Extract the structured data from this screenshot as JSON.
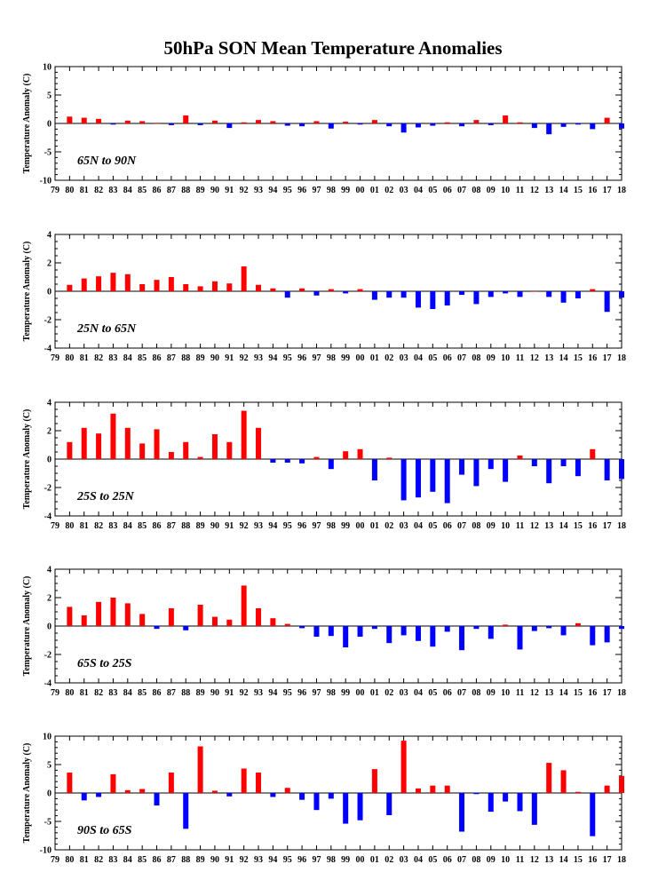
{
  "title": "50hPa SON Mean Temperature Anomalies",
  "colors": {
    "positive": "#ff0000",
    "negative": "#0000ff",
    "axis": "#000000"
  },
  "chart_data": [
    {
      "type": "bar",
      "label": "65N to 90N",
      "ylabel": "Temperature Anomaly (C)",
      "ylim": [
        -10,
        10
      ],
      "yticks": [
        "-10",
        "-5",
        "0",
        "5",
        "10"
      ],
      "x": [
        "80",
        "81",
        "82",
        "83",
        "84",
        "85",
        "86",
        "87",
        "88",
        "89",
        "90",
        "91",
        "92",
        "93",
        "94",
        "95",
        "96",
        "97",
        "98",
        "99",
        "00",
        "01",
        "02",
        "03",
        "04",
        "05",
        "06",
        "07",
        "08",
        "09",
        "10",
        "11",
        "12",
        "13",
        "14",
        "15",
        "16",
        "17",
        "18"
      ],
      "xticks": [
        "79",
        "80",
        "81",
        "82",
        "83",
        "84",
        "85",
        "86",
        "87",
        "88",
        "89",
        "90",
        "91",
        "92",
        "93",
        "94",
        "95",
        "96",
        "97",
        "98",
        "99",
        "00",
        "01",
        "02",
        "03",
        "04",
        "05",
        "06",
        "07",
        "08",
        "09",
        "10",
        "11",
        "12",
        "13",
        "14",
        "15",
        "16",
        "17",
        "18"
      ],
      "values": [
        1.2,
        1.0,
        0.8,
        -0.2,
        0.5,
        0.4,
        0.0,
        -0.3,
        1.4,
        -0.3,
        0.5,
        -0.8,
        0.2,
        0.6,
        0.4,
        -0.4,
        -0.5,
        0.4,
        -0.9,
        0.3,
        -0.2,
        0.6,
        -0.5,
        -1.6,
        -0.7,
        -0.4,
        0.2,
        -0.5,
        0.6,
        -0.3,
        1.4,
        0.2,
        -0.8,
        -1.9,
        -0.6,
        -0.2,
        -1.0,
        1.0,
        -0.9
      ]
    },
    {
      "type": "bar",
      "label": "25N to 65N",
      "ylabel": "Temperature Anomaly (C)",
      "ylim": [
        -4,
        4
      ],
      "yticks": [
        "-4",
        "-2",
        "0",
        "2",
        "4"
      ],
      "x": [
        "80",
        "81",
        "82",
        "83",
        "84",
        "85",
        "86",
        "87",
        "88",
        "89",
        "90",
        "91",
        "92",
        "93",
        "94",
        "95",
        "96",
        "97",
        "98",
        "99",
        "00",
        "01",
        "02",
        "03",
        "04",
        "05",
        "06",
        "07",
        "08",
        "09",
        "10",
        "11",
        "12",
        "13",
        "14",
        "15",
        "16",
        "17",
        "18"
      ],
      "xticks": [
        "79",
        "80",
        "81",
        "82",
        "83",
        "84",
        "85",
        "86",
        "87",
        "88",
        "89",
        "90",
        "91",
        "92",
        "93",
        "94",
        "95",
        "96",
        "97",
        "98",
        "99",
        "00",
        "01",
        "02",
        "03",
        "04",
        "05",
        "06",
        "07",
        "08",
        "09",
        "10",
        "11",
        "12",
        "13",
        "14",
        "15",
        "16",
        "17",
        "18"
      ],
      "values": [
        0.45,
        0.9,
        1.05,
        1.3,
        1.2,
        0.5,
        0.8,
        1.0,
        0.5,
        0.35,
        0.7,
        0.55,
        1.75,
        0.45,
        0.2,
        -0.45,
        0.2,
        -0.3,
        0.15,
        -0.15,
        0.15,
        -0.6,
        -0.45,
        -0.45,
        -1.15,
        -1.25,
        -1.0,
        -0.25,
        -0.9,
        -0.4,
        -0.15,
        -0.4,
        0.0,
        -0.4,
        -0.8,
        -0.5,
        0.15,
        -1.45,
        -0.45
      ]
    },
    {
      "type": "bar",
      "label": "25S to 25N",
      "ylabel": "Temperature Anomaly (C)",
      "ylim": [
        -4,
        4
      ],
      "yticks": [
        "-4",
        "-2",
        "0",
        "2",
        "4"
      ],
      "x": [
        "80",
        "81",
        "82",
        "83",
        "84",
        "85",
        "86",
        "87",
        "88",
        "89",
        "90",
        "91",
        "92",
        "93",
        "94",
        "95",
        "96",
        "97",
        "98",
        "99",
        "00",
        "01",
        "02",
        "03",
        "04",
        "05",
        "06",
        "07",
        "08",
        "09",
        "10",
        "11",
        "12",
        "13",
        "14",
        "15",
        "16",
        "17",
        "18"
      ],
      "xticks": [
        "79",
        "80",
        "81",
        "82",
        "83",
        "84",
        "85",
        "86",
        "87",
        "88",
        "89",
        "90",
        "91",
        "92",
        "93",
        "94",
        "95",
        "96",
        "97",
        "98",
        "99",
        "00",
        "01",
        "02",
        "03",
        "04",
        "05",
        "06",
        "07",
        "08",
        "09",
        "10",
        "11",
        "12",
        "13",
        "14",
        "15",
        "16",
        "17",
        "18"
      ],
      "values": [
        1.2,
        2.2,
        1.8,
        3.2,
        2.2,
        1.1,
        2.1,
        0.5,
        1.2,
        0.15,
        1.75,
        1.2,
        3.4,
        2.2,
        -0.25,
        -0.25,
        -0.3,
        0.15,
        -0.7,
        0.55,
        0.7,
        -1.5,
        0.1,
        -2.9,
        -2.7,
        -2.3,
        -3.1,
        -1.1,
        -1.9,
        -0.7,
        -1.6,
        0.25,
        -0.5,
        -1.7,
        -0.5,
        -1.2,
        0.7,
        -1.5,
        -1.4
      ]
    },
    {
      "type": "bar",
      "label": "65S to 25S",
      "ylabel": "Temperature Anomaly (C)",
      "ylim": [
        -4,
        4
      ],
      "yticks": [
        "-4",
        "-2",
        "0",
        "2",
        "4"
      ],
      "x": [
        "80",
        "81",
        "82",
        "83",
        "84",
        "85",
        "86",
        "87",
        "88",
        "89",
        "90",
        "91",
        "92",
        "93",
        "94",
        "95",
        "96",
        "97",
        "98",
        "99",
        "00",
        "01",
        "02",
        "03",
        "04",
        "05",
        "06",
        "07",
        "08",
        "09",
        "10",
        "11",
        "12",
        "13",
        "14",
        "15",
        "16",
        "17",
        "18"
      ],
      "xticks": [
        "79",
        "80",
        "81",
        "82",
        "83",
        "84",
        "85",
        "86",
        "87",
        "88",
        "89",
        "90",
        "91",
        "92",
        "93",
        "94",
        "95",
        "96",
        "97",
        "98",
        "99",
        "00",
        "01",
        "02",
        "03",
        "04",
        "05",
        "06",
        "07",
        "08",
        "09",
        "10",
        "11",
        "12",
        "13",
        "14",
        "15",
        "16",
        "17",
        "18"
      ],
      "values": [
        1.35,
        0.75,
        1.7,
        2.0,
        1.6,
        0.85,
        -0.2,
        1.25,
        -0.3,
        1.5,
        0.65,
        0.45,
        2.85,
        1.25,
        0.55,
        0.15,
        -0.15,
        -0.75,
        -0.7,
        -1.5,
        -0.75,
        -0.2,
        -1.2,
        -0.65,
        -1.05,
        -1.45,
        -0.4,
        -1.7,
        -0.2,
        -0.9,
        0.1,
        -1.65,
        -0.35,
        -0.15,
        -0.65,
        0.2,
        -1.35,
        -1.15,
        -0.2
      ]
    },
    {
      "type": "bar",
      "label": "90S to 65S",
      "ylabel": "Temperature Anomaly (C)",
      "ylim": [
        -10,
        10
      ],
      "yticks": [
        "-10",
        "-5",
        "0",
        "5",
        "10"
      ],
      "x": [
        "80",
        "81",
        "82",
        "83",
        "84",
        "85",
        "86",
        "87",
        "88",
        "89",
        "90",
        "91",
        "92",
        "93",
        "94",
        "95",
        "96",
        "97",
        "98",
        "99",
        "00",
        "01",
        "02",
        "03",
        "04",
        "05",
        "06",
        "07",
        "08",
        "09",
        "10",
        "11",
        "12",
        "13",
        "14",
        "15",
        "16",
        "17",
        "18"
      ],
      "xticks": [
        "79",
        "80",
        "81",
        "82",
        "83",
        "84",
        "85",
        "86",
        "87",
        "88",
        "89",
        "90",
        "91",
        "92",
        "93",
        "94",
        "95",
        "96",
        "97",
        "98",
        "99",
        "00",
        "01",
        "02",
        "03",
        "04",
        "05",
        "06",
        "07",
        "08",
        "09",
        "10",
        "11",
        "12",
        "13",
        "14",
        "15",
        "16",
        "17",
        "18"
      ],
      "values": [
        3.6,
        -1.3,
        -0.7,
        3.3,
        0.5,
        0.7,
        -2.2,
        3.6,
        -6.3,
        8.2,
        0.4,
        -0.6,
        4.3,
        3.6,
        -0.7,
        0.9,
        -1.2,
        -3.0,
        -1.0,
        -5.4,
        -4.8,
        4.2,
        -3.9,
        9.2,
        0.8,
        1.3,
        1.3,
        -6.8,
        -0.2,
        -3.3,
        -1.5,
        -3.2,
        -5.6,
        5.3,
        4.0,
        0.2,
        -7.6,
        1.3,
        3.0
      ]
    }
  ]
}
